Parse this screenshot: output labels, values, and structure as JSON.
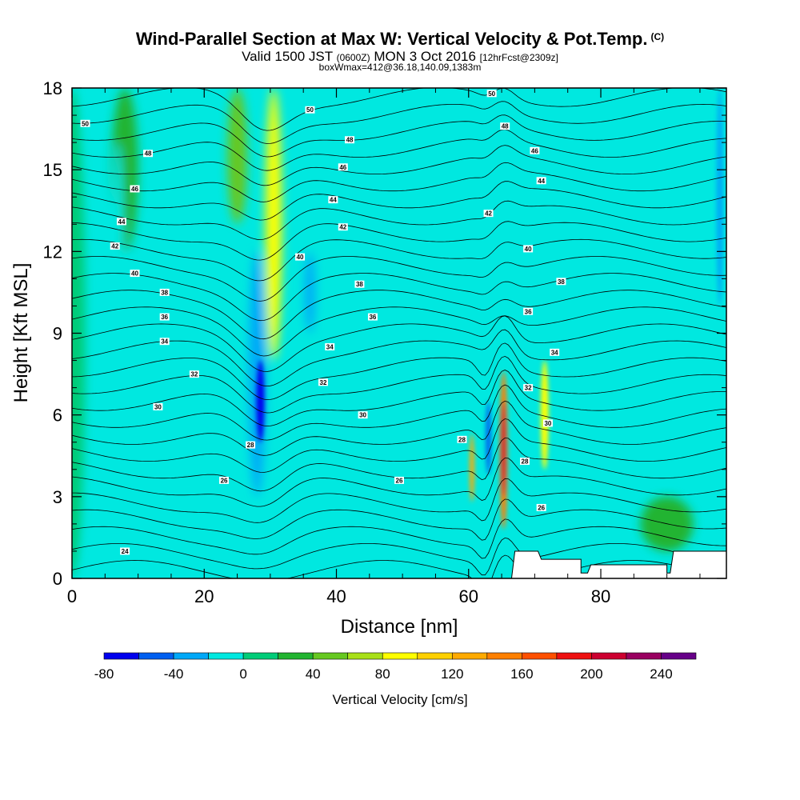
{
  "title": {
    "main": "Wind-Parallel Section at Max W: Vertical Velocity & Pot.Temp.",
    "copyright": "(C)",
    "valid_prefix": "Valid 1500 JST",
    "valid_utc": "(0600Z)",
    "valid_date": "MON 3 Oct 2016",
    "forecast": "[12hrFcst@2309z]",
    "box": "boxWmax=412@36.18,140.09,1383m"
  },
  "chart_data": {
    "type": "heatmap",
    "xlabel": "Distance [nm]",
    "ylabel": "Height [Kft MSL]",
    "xlim": [
      0,
      99
    ],
    "ylim": [
      0,
      18
    ],
    "x_ticks": [
      0,
      20,
      40,
      60,
      80
    ],
    "y_ticks": [
      0,
      3,
      6,
      9,
      12,
      15,
      18
    ],
    "colorbar": {
      "label": "Vertical Velocity [cm/s]",
      "bounds": [
        -80,
        -60,
        -40,
        -20,
        0,
        20,
        40,
        60,
        80,
        100,
        120,
        140,
        160,
        180,
        200,
        220,
        240,
        260
      ],
      "tick_values": [
        -80,
        -40,
        0,
        40,
        80,
        120,
        160,
        200,
        240
      ],
      "colors": [
        "#0000ee",
        "#005ff0",
        "#00a8f8",
        "#00e8e0",
        "#00cc78",
        "#22b430",
        "#66c820",
        "#a8e018",
        "#ffff00",
        "#ffd000",
        "#ffaa00",
        "#ff8000",
        "#ff5000",
        "#ee1010",
        "#cc0030",
        "#990060",
        "#660088"
      ]
    },
    "vertical_velocity_features": [
      {
        "x": 0,
        "width": 4,
        "top": 18,
        "bottom": 0,
        "value": 0
      },
      {
        "x": 8,
        "width": 4,
        "top": 18,
        "bottom": 12,
        "value": 30
      },
      {
        "x": 7,
        "width": 1.5,
        "top": 16,
        "bottom": 9,
        "value": -10
      },
      {
        "x": 25,
        "width": 3,
        "top": 18,
        "bottom": 13,
        "value": 50
      },
      {
        "x": 30.5,
        "width": 2.5,
        "top": 18,
        "bottom": 8,
        "value": 90
      },
      {
        "x": 28,
        "width": 2.5,
        "top": 12,
        "bottom": 3,
        "value": -35
      },
      {
        "x": 28.5,
        "width": 1.2,
        "top": 8,
        "bottom": 5,
        "value": -70
      },
      {
        "x": 36,
        "width": 1.5,
        "top": 12,
        "bottom": 9,
        "value": -25
      },
      {
        "x": 40,
        "width": 1.5,
        "top": 8,
        "bottom": 2,
        "value": -15
      },
      {
        "x": 48,
        "width": 2,
        "top": 11,
        "bottom": 7,
        "value": -15
      },
      {
        "x": 60.5,
        "width": 0.6,
        "top": 5.3,
        "bottom": 2.8,
        "value": 120
      },
      {
        "x": 63,
        "width": 0.8,
        "top": 6.5,
        "bottom": 3.8,
        "value": -60
      },
      {
        "x": 65.3,
        "width": 1.2,
        "top": 7.6,
        "bottom": 1.8,
        "value": 150
      },
      {
        "x": 65.3,
        "width": 0.5,
        "top": 6.5,
        "bottom": 3.0,
        "value": 205
      },
      {
        "x": 71.5,
        "width": 1.2,
        "top": 8,
        "bottom": 4,
        "value": 90
      },
      {
        "x": 90,
        "width": 8,
        "top": 3,
        "bottom": 1,
        "value": 30
      },
      {
        "x": 98,
        "width": 1,
        "top": 18,
        "bottom": 10,
        "value": -25
      }
    ],
    "potential_temperature_contours": {
      "labels": [
        {
          "x": 2,
          "y": 16.7,
          "text": "50"
        },
        {
          "x": 11.5,
          "y": 15.6,
          "text": "48"
        },
        {
          "x": 9.5,
          "y": 14.3,
          "text": "46"
        },
        {
          "x": 7.5,
          "y": 13.1,
          "text": "44"
        },
        {
          "x": 6.5,
          "y": 12.2,
          "text": "42"
        },
        {
          "x": 9.5,
          "y": 11.2,
          "text": "40"
        },
        {
          "x": 14,
          "y": 10.5,
          "text": "38"
        },
        {
          "x": 14,
          "y": 9.6,
          "text": "36"
        },
        {
          "x": 14,
          "y": 8.7,
          "text": "34"
        },
        {
          "x": 18.5,
          "y": 7.5,
          "text": "32"
        },
        {
          "x": 13,
          "y": 6.3,
          "text": "30"
        },
        {
          "x": 27,
          "y": 4.9,
          "text": "28"
        },
        {
          "x": 23,
          "y": 3.6,
          "text": "26"
        },
        {
          "x": 8,
          "y": 1.0,
          "text": "24"
        },
        {
          "x": 36,
          "y": 17.2,
          "text": "50"
        },
        {
          "x": 42,
          "y": 16.1,
          "text": "48"
        },
        {
          "x": 41,
          "y": 15.1,
          "text": "46"
        },
        {
          "x": 39.5,
          "y": 13.9,
          "text": "44"
        },
        {
          "x": 41,
          "y": 12.9,
          "text": "42"
        },
        {
          "x": 34.5,
          "y": 11.8,
          "text": "40"
        },
        {
          "x": 43.5,
          "y": 10.8,
          "text": "38"
        },
        {
          "x": 45.5,
          "y": 9.6,
          "text": "36"
        },
        {
          "x": 39,
          "y": 8.5,
          "text": "34"
        },
        {
          "x": 38,
          "y": 7.2,
          "text": "32"
        },
        {
          "x": 44,
          "y": 6.0,
          "text": "30"
        },
        {
          "x": 59,
          "y": 5.1,
          "text": "28"
        },
        {
          "x": 49.5,
          "y": 3.6,
          "text": "26"
        },
        {
          "x": 63.5,
          "y": 17.8,
          "text": "50"
        },
        {
          "x": 65.5,
          "y": 16.6,
          "text": "48"
        },
        {
          "x": 70,
          "y": 15.7,
          "text": "46"
        },
        {
          "x": 71,
          "y": 14.6,
          "text": "44"
        },
        {
          "x": 63,
          "y": 13.4,
          "text": "42"
        },
        {
          "x": 69,
          "y": 12.1,
          "text": "40"
        },
        {
          "x": 74,
          "y": 10.9,
          "text": "38"
        },
        {
          "x": 69,
          "y": 9.8,
          "text": "36"
        },
        {
          "x": 73,
          "y": 8.3,
          "text": "34"
        },
        {
          "x": 69,
          "y": 7.0,
          "text": "32"
        },
        {
          "x": 72,
          "y": 5.7,
          "text": "30"
        },
        {
          "x": 68.5,
          "y": 4.3,
          "text": "28"
        },
        {
          "x": 71,
          "y": 2.6,
          "text": "26"
        }
      ]
    },
    "terrain": [
      [
        66.5,
        0
      ],
      [
        67,
        1.0
      ],
      [
        70.5,
        1.0
      ],
      [
        71,
        0.7
      ],
      [
        77,
        0.7
      ],
      [
        77,
        0.2
      ],
      [
        78,
        0.2
      ],
      [
        78.5,
        0.5
      ],
      [
        90,
        0.5
      ],
      [
        90,
        0.2
      ],
      [
        90.5,
        0.2
      ],
      [
        91,
        1.0
      ],
      [
        99,
        1.0
      ],
      [
        99,
        0
      ]
    ]
  }
}
